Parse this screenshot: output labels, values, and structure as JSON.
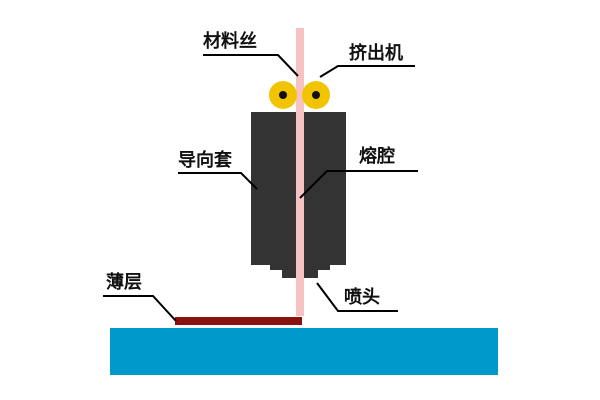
{
  "labels": {
    "filament": "材料丝",
    "extruder": "挤出机",
    "guide_sleeve": "导向套",
    "melt_chamber": "熔腔",
    "nozzle": "喷头",
    "layer": "薄层"
  },
  "colors": {
    "filament": "#f6c2c2",
    "roller": "#f2c400",
    "roller_core": "#111111",
    "body": "#333333",
    "deposited_layer": "#8b1010",
    "build_platform": "#0099cc",
    "leader_line": "#000000"
  }
}
